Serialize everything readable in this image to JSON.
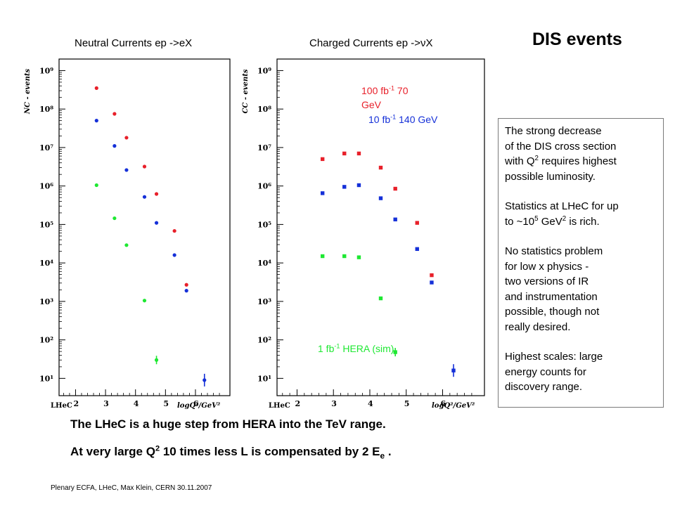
{
  "slide_title": "DIS events",
  "notes": {
    "p1": [
      "The strong decrease",
      "of the DIS cross section",
      "with Q",
      "2",
      " requires highest",
      "possible luminosity."
    ],
    "p2": [
      "Statistics at LHeC for up",
      "to ~10",
      "5",
      " GeV",
      "2",
      "  is rich."
    ],
    "p3": [
      "No statistics problem",
      "for low x physics -",
      "two versions of IR",
      "and instrumentation",
      "possible, though not",
      "really desired."
    ],
    "p4": [
      "Highest scales: large",
      "energy counts for",
      "discovery range."
    ]
  },
  "bottom_text": {
    "line1": "The LHeC is a huge step from HERA into the TeV range.",
    "line2": [
      "At very large Q",
      "2",
      " 10 times less L is compensated by 2 E",
      "e",
      " ."
    ]
  },
  "footer": "Plenary ECFA, LHeC, Max Klein, CERN 30.11.2007",
  "series_labels": {
    "red": [
      "100 fb",
      "-1",
      "  70",
      "GeV"
    ],
    "blue": [
      "10 fb",
      "-1",
      " 140 GeV"
    ],
    "green": [
      "1 fb",
      "-1",
      "  HERA (sim)"
    ]
  },
  "colors": {
    "red": "#e8202a",
    "blue": "#1530d8",
    "green": "#1ee832",
    "frame": "#000000",
    "notes_border": "#7a7a7a"
  },
  "chart_data": [
    {
      "type": "scatter",
      "title": "Neutral Currents ep ->eX",
      "ylabel": "NC - events",
      "xlabel": "logQ²/GeV²",
      "brand": "LHeC",
      "x_ticks": [
        "2",
        "3",
        "4",
        "5",
        "6"
      ],
      "y_ticks": [
        "10¹",
        "10²",
        "10³",
        "10⁴",
        "10⁵",
        "10⁶",
        "10⁷",
        "10⁸",
        "10⁹"
      ],
      "xlim": [
        1.45,
        7.15
      ],
      "ylim_log10": [
        0.55,
        9.3
      ],
      "log_y": true,
      "marker": "circle",
      "series": [
        {
          "color_key": "red",
          "points": [
            [
              2.7,
              350000000
            ],
            [
              3.3,
              75000000
            ],
            [
              3.7,
              18000000
            ],
            [
              4.3,
              3200000
            ],
            [
              4.7,
              620000
            ],
            [
              5.3,
              68000
            ],
            [
              5.7,
              2700
            ]
          ]
        },
        {
          "color_key": "blue",
          "points": [
            [
              2.7,
              50000000
            ],
            [
              3.3,
              11000000
            ],
            [
              3.7,
              2600000
            ],
            [
              4.3,
              520000
            ],
            [
              4.7,
              110000
            ],
            [
              5.3,
              16000
            ],
            [
              5.7,
              1900
            ],
            [
              6.3,
              9
            ]
          ]
        },
        {
          "color_key": "green",
          "points": [
            [
              2.7,
              1050000
            ],
            [
              3.3,
              145000
            ],
            [
              3.7,
              29000
            ],
            [
              4.3,
              1050
            ],
            [
              4.7,
              30
            ]
          ]
        }
      ]
    },
    {
      "type": "scatter",
      "title": "Charged Currents ep ->νX",
      "ylabel": "CC - events",
      "xlabel": "logQ²/GeV²",
      "brand": "LHeC",
      "x_ticks": [
        "2",
        "3",
        "4",
        "5",
        "6"
      ],
      "y_ticks": [
        "10¹",
        "10²",
        "10³",
        "10⁴",
        "10⁵",
        "10⁶",
        "10⁷",
        "10⁸",
        "10⁹"
      ],
      "xlim": [
        1.45,
        7.15
      ],
      "ylim_log10": [
        0.55,
        9.3
      ],
      "log_y": true,
      "marker": "square",
      "series": [
        {
          "color_key": "red",
          "points": [
            [
              2.7,
              5000000
            ],
            [
              3.3,
              7000000
            ],
            [
              3.7,
              7000000
            ],
            [
              4.3,
              3000000
            ],
            [
              4.7,
              850000
            ],
            [
              5.3,
              110000
            ],
            [
              5.7,
              4800
            ]
          ]
        },
        {
          "color_key": "blue",
          "points": [
            [
              2.7,
              650000
            ],
            [
              3.3,
              950000
            ],
            [
              3.7,
              1050000
            ],
            [
              4.3,
              480000
            ],
            [
              4.7,
              135000
            ],
            [
              5.3,
              23000
            ],
            [
              5.7,
              3100
            ],
            [
              6.3,
              16
            ]
          ]
        },
        {
          "color_key": "green",
          "points": [
            [
              2.7,
              15000
            ],
            [
              3.3,
              15000
            ],
            [
              3.7,
              14000
            ],
            [
              4.3,
              1200
            ],
            [
              4.7,
              48
            ]
          ]
        }
      ]
    }
  ]
}
